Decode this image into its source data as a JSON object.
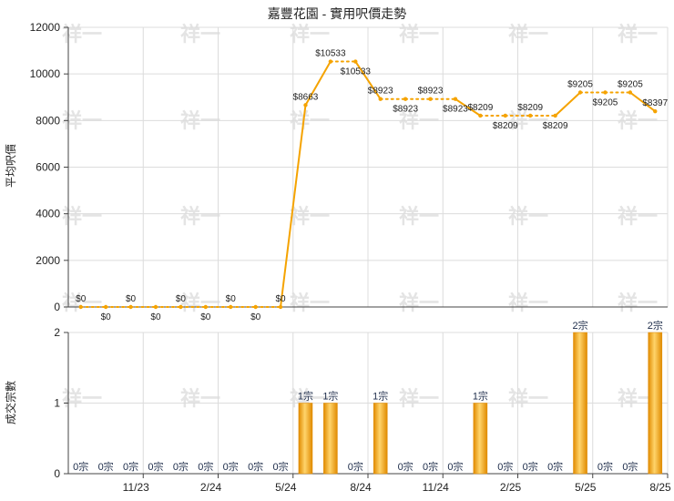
{
  "chart_data": [
    {
      "type": "line",
      "title": "嘉豐花園 - 實用呎價走勢",
      "ylabel": "平均呎價",
      "ylim": [
        0,
        12000
      ],
      "yticks": [
        0,
        2000,
        4000,
        6000,
        8000,
        10000,
        12000
      ],
      "series": [
        {
          "values": [
            0,
            0,
            0,
            0,
            0,
            0,
            0,
            0,
            0,
            8663,
            10533,
            10533,
            8923,
            8923,
            8923,
            8923,
            8209,
            8209,
            8209,
            8209,
            9205,
            9205,
            9205,
            8397
          ],
          "labels": [
            "$0",
            "$0",
            "$0",
            "$0",
            "$0",
            "$0",
            "$0",
            "$0",
            "$0",
            "$8663",
            "$10533",
            "$10533",
            "$8923",
            "$8923",
            "$8923",
            "$8923",
            "$8209",
            "$8209",
            "$8209",
            "$8209",
            "$9205",
            "$9205",
            "$9205",
            "$8397"
          ]
        }
      ],
      "grid": true
    },
    {
      "type": "bar",
      "ylabel": "成交宗數",
      "ylim": [
        0,
        2
      ],
      "yticks": [
        0,
        1,
        2
      ],
      "xtick_labels": [
        "11/23",
        "2/24",
        "5/24",
        "8/24",
        "11/24",
        "2/25",
        "5/25",
        "8/25"
      ],
      "series": [
        {
          "values": [
            0,
            0,
            0,
            0,
            0,
            0,
            0,
            0,
            0,
            1,
            1,
            0,
            1,
            0,
            0,
            0,
            1,
            0,
            0,
            0,
            2,
            0,
            0,
            2
          ],
          "labels": [
            "0宗",
            "0宗",
            "0宗",
            "0宗",
            "0宗",
            "0宗",
            "0宗",
            "0宗",
            "0宗",
            "1宗",
            "1宗",
            "0宗",
            "1宗",
            "0宗",
            "0宗",
            "0宗",
            "1宗",
            "0宗",
            "0宗",
            "0宗",
            "2宗",
            "0宗",
            "0宗",
            "2宗"
          ]
        }
      ],
      "grid": true
    }
  ],
  "watermark": "祥一",
  "colors": {
    "line": "#f5a300",
    "bar_mid": "#f5a300",
    "bar_edge": "#e08a00",
    "bar_light": "#ffd46b",
    "grid": "#dcdcdc",
    "axis": "#444444"
  }
}
